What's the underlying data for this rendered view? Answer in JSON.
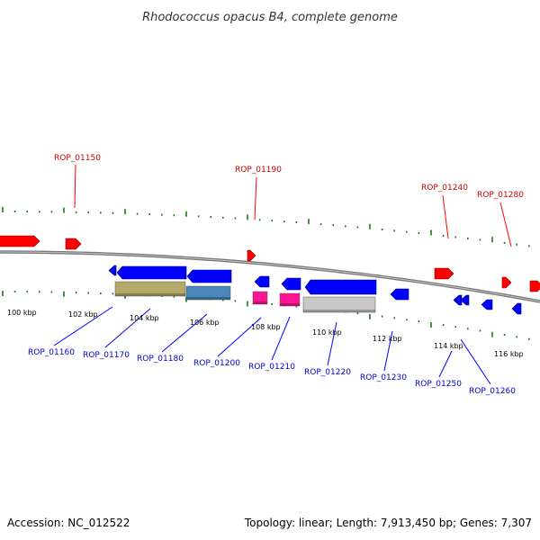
{
  "title": "Rhodococcus opacus B4, complete genome",
  "footer": {
    "accession": "Accession: NC_012522",
    "summary": "Topology: linear; Length: 7,913,450 bp; Genes: 7,307"
  },
  "colors": {
    "forward_gene": "#ff0000",
    "reverse_gene": "#0000ff",
    "tick": "#1a7a1a",
    "backbone": "#7a7a7a",
    "forward_label": "#cc0000",
    "reverse_label": "#0000cc"
  },
  "scale_labels": [
    "100 kbp",
    "102 kbp",
    "104 kbp",
    "106 kbp",
    "108 kbp",
    "110 kbp",
    "112 kbp",
    "114 kbp",
    "116 kbp"
  ],
  "forward_labels": [
    "ROP_01150",
    "ROP_01190",
    "ROP_01240",
    "ROP_01280"
  ],
  "reverse_labels": [
    "ROP_01160",
    "ROP_01170",
    "ROP_01180",
    "ROP_01200",
    "ROP_01210",
    "ROP_01220",
    "ROP_01230",
    "ROP_01250",
    "ROP_01260"
  ],
  "feature_colors": [
    "#b5a96a",
    "#4a86b8",
    "#ff1493",
    "#c8c8c8"
  ]
}
